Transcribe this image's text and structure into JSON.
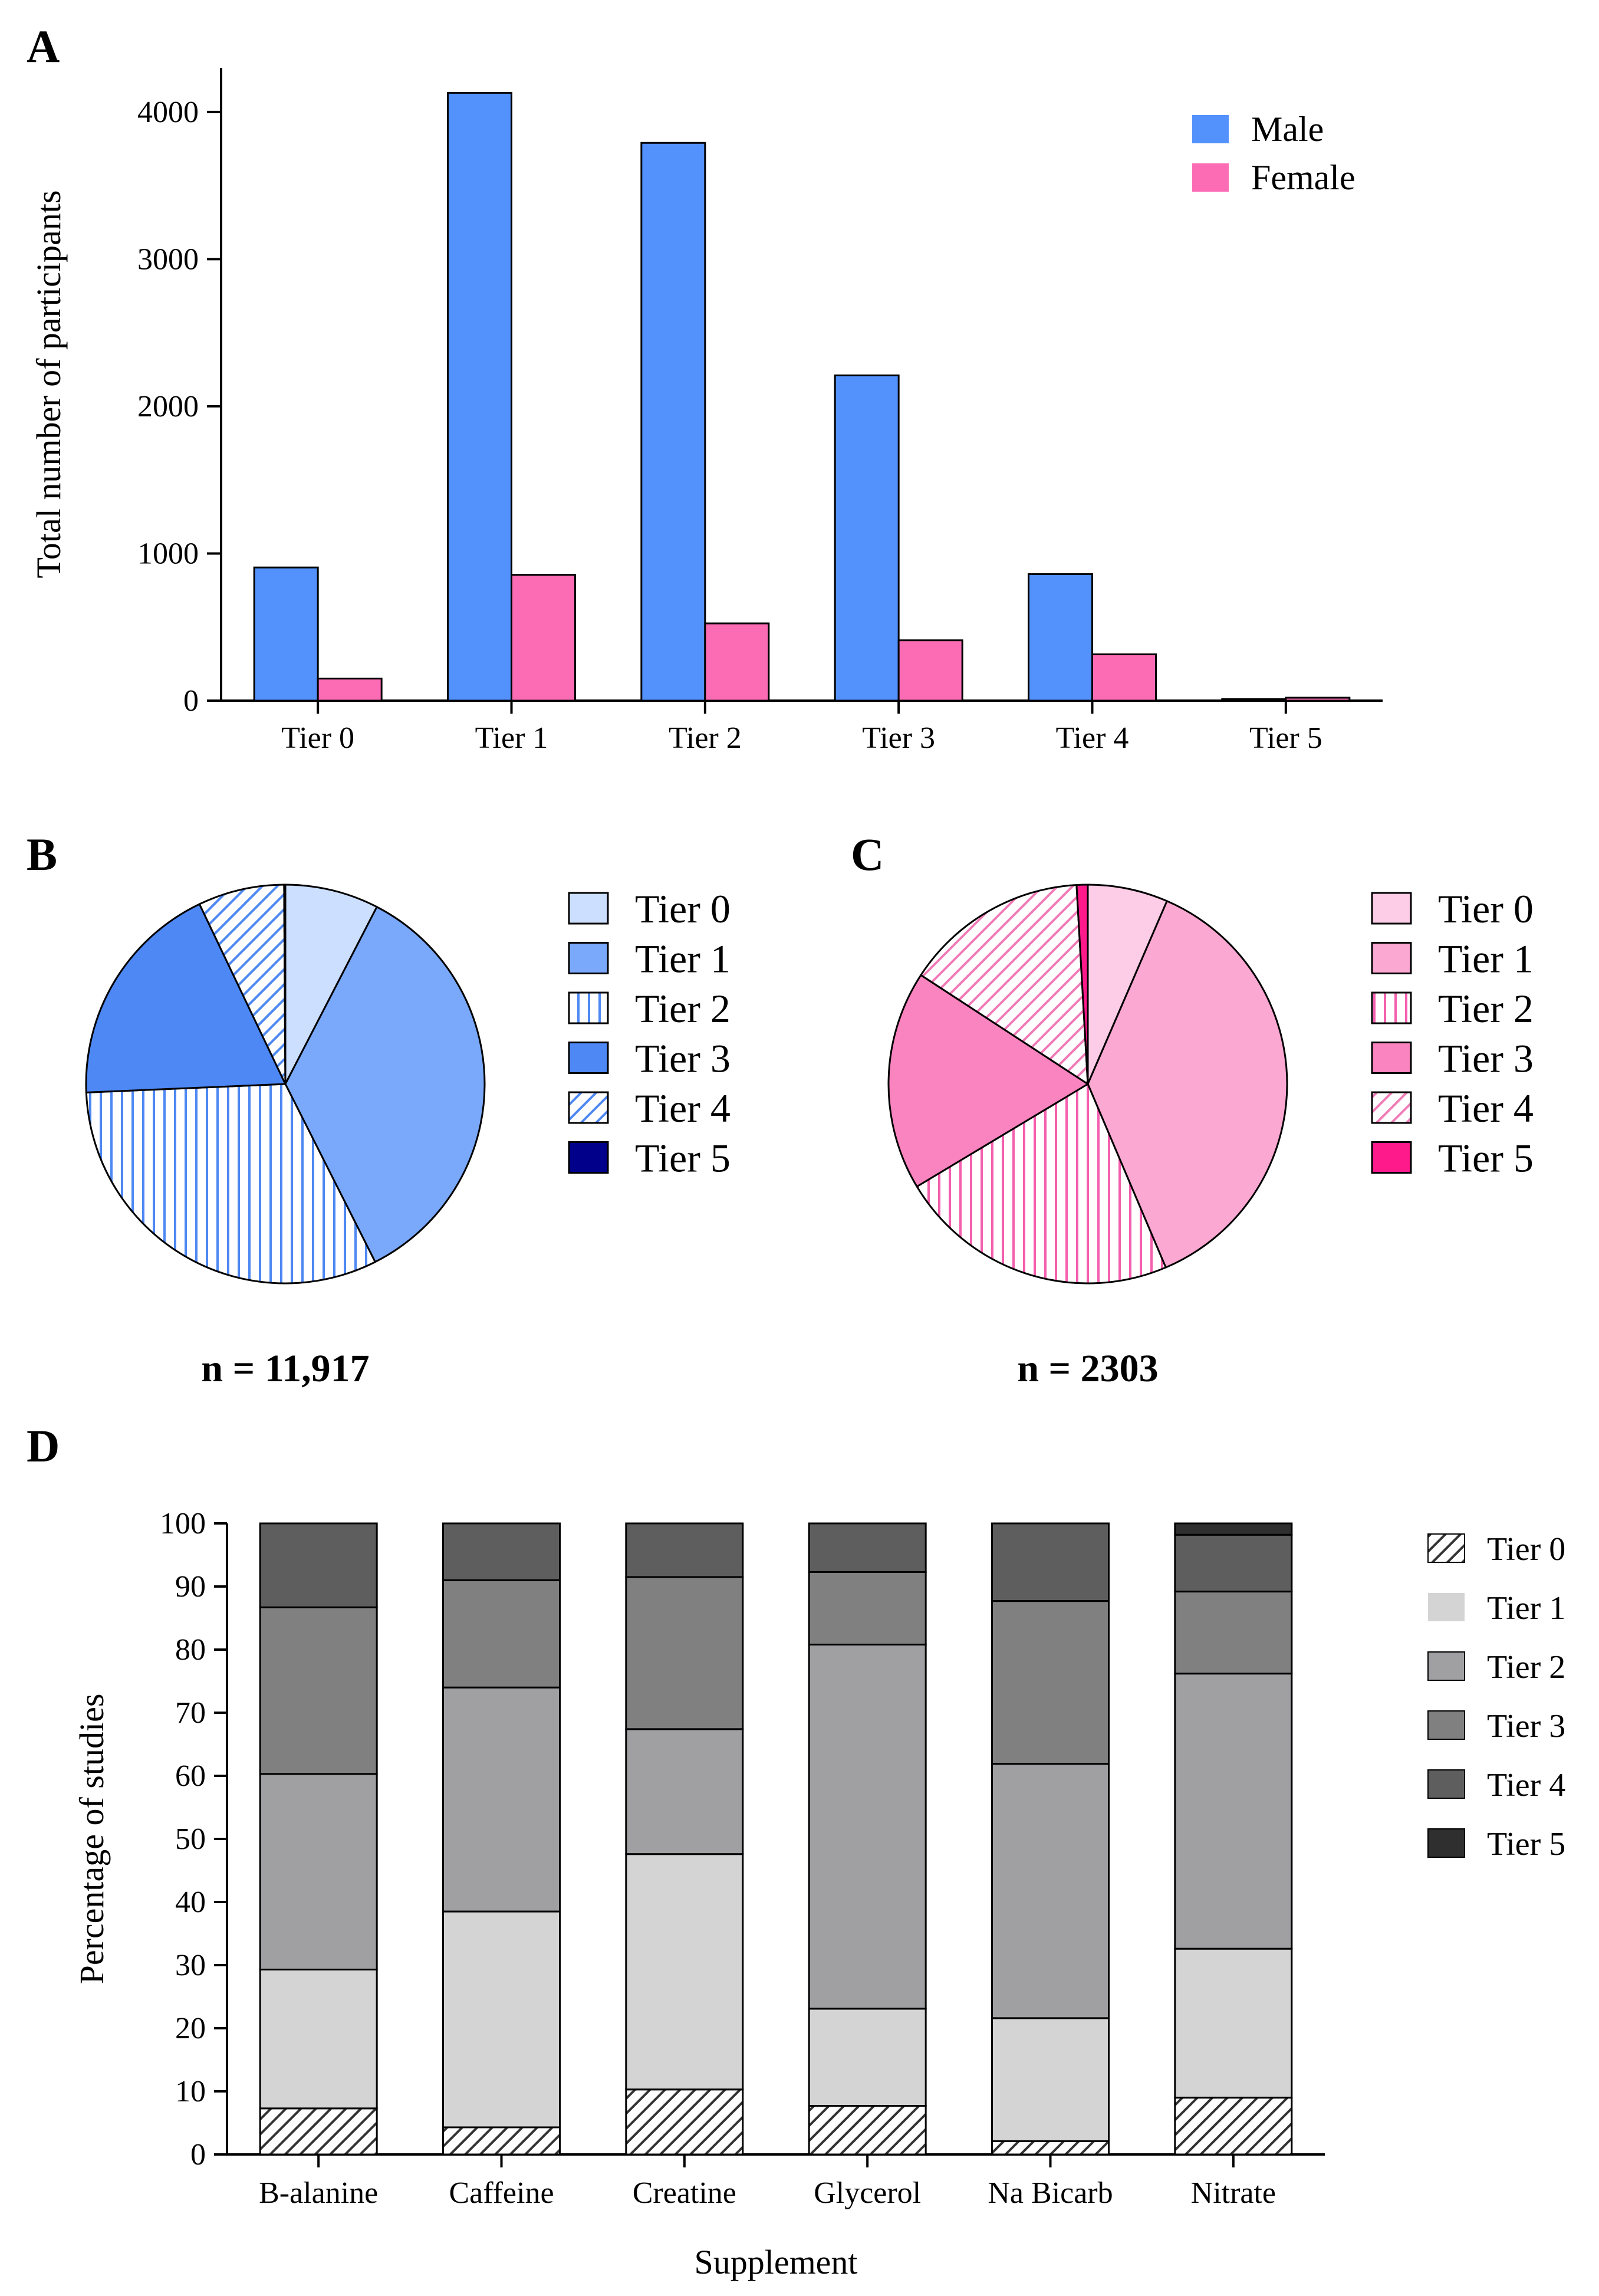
{
  "colors": {
    "male": "#5391fc",
    "female": "#fb6cb5",
    "axis": "#000000",
    "male_tiers": [
      "#cddfff",
      "#7aa9fb",
      "#4e88f2",
      "#4d88f5",
      "#4e88f2",
      "#00008b"
    ],
    "female_tiers": [
      "#fdcce6",
      "#fba8d3",
      "#f45fae",
      "#fa84bf",
      "#f07cb7",
      "#ff1a8c"
    ],
    "grey_tiers": [
      "#333333",
      "#d4d4d4",
      "#a0a0a3",
      "#808080",
      "#5e5e5e",
      "#2f2f2f"
    ]
  },
  "chart_data": [
    {
      "panel": "A",
      "type": "bar",
      "title": "",
      "xlabel": "",
      "ylabel": "Total number of participants",
      "categories": [
        "Tier 0",
        "Tier 1",
        "Tier 2",
        "Tier 3",
        "Tier 4",
        "Tier 5"
      ],
      "series": [
        {
          "name": "Male",
          "values": [
            905,
            4130,
            3790,
            2210,
            860,
            10
          ]
        },
        {
          "name": "Female",
          "values": [
            150,
            855,
            525,
            410,
            315,
            20
          ]
        }
      ],
      "ylim": [
        0,
        4300
      ],
      "yticks": [
        0,
        1000,
        2000,
        3000,
        4000
      ],
      "legend": "top-right"
    },
    {
      "panel": "B",
      "type": "pie",
      "labels": [
        "Tier 0",
        "Tier 1",
        "Tier 2",
        "Tier 3",
        "Tier 4",
        "Tier 5"
      ],
      "patterns": [
        "solid",
        "solid",
        "vertical-lines",
        "solid",
        "diagonal-lines",
        "solid"
      ],
      "values": [
        7.6,
        35.0,
        31.8,
        18.6,
        7.0,
        0.1
      ],
      "caption": "n = 11,917",
      "legend": "right"
    },
    {
      "panel": "C",
      "type": "pie",
      "labels": [
        "Tier 0",
        "Tier 1",
        "Tier 2",
        "Tier 3",
        "Tier 4",
        "Tier 5"
      ],
      "patterns": [
        "solid",
        "solid",
        "vertical-lines",
        "solid",
        "diagonal-lines",
        "solid"
      ],
      "values": [
        6.5,
        37.1,
        22.8,
        17.8,
        14.9,
        0.9
      ],
      "caption": "n = 2303",
      "legend": "right"
    },
    {
      "panel": "D",
      "type": "bar",
      "stacked": true,
      "xlabel": "Supplement",
      "ylabel": "Percentage of studies",
      "categories": [
        "B-alanine",
        "Caffeine",
        "Creatine",
        "Glycerol",
        "Na Bicarb",
        "Nitrate"
      ],
      "series": [
        {
          "name": "Tier 0",
          "pattern": "diagonal-lines",
          "values": [
            7.3,
            4.3,
            10.3,
            7.7,
            2.1,
            9.0
          ]
        },
        {
          "name": "Tier 1",
          "values": [
            22.0,
            34.2,
            37.3,
            15.4,
            19.5,
            23.6
          ]
        },
        {
          "name": "Tier 2",
          "values": [
            31.0,
            35.5,
            19.8,
            57.7,
            40.3,
            43.6
          ]
        },
        {
          "name": "Tier 3",
          "values": [
            26.4,
            17.0,
            24.1,
            11.5,
            25.8,
            13.0
          ]
        },
        {
          "name": "Tier 4",
          "values": [
            13.3,
            9.0,
            8.5,
            7.7,
            12.3,
            9.0
          ]
        },
        {
          "name": "Tier 5",
          "values": [
            0,
            0,
            0,
            0,
            0,
            1.8
          ]
        }
      ],
      "ylim": [
        0,
        100
      ],
      "yticks": [
        0,
        10,
        20,
        30,
        40,
        50,
        60,
        70,
        80,
        90,
        100
      ],
      "legend": "right"
    }
  ],
  "panels": {
    "a_label": "A",
    "b_label": "B",
    "c_label": "C",
    "d_label": "D"
  }
}
